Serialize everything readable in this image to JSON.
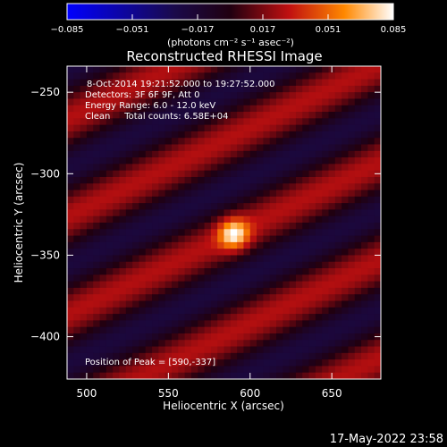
{
  "chart_data": {
    "type": "heatmap",
    "title": "Reconstructed RHESSI Image",
    "xlabel": "Heliocentric X (arcsec)",
    "ylabel": "Heliocentric Y (arcsec)",
    "xlim": [
      488,
      680
    ],
    "ylim": [
      -426,
      -234
    ],
    "x_ticks": [
      500,
      550,
      600,
      650
    ],
    "y_ticks": [
      -250,
      -300,
      -350,
      -400
    ],
    "colorbar": {
      "min": -0.085,
      "max": 0.085,
      "ticks": [
        -0.085,
        -0.051,
        -0.017,
        0.017,
        0.051,
        0.085
      ],
      "tick_labels": [
        "−0.085",
        "−0.051",
        "−0.017",
        "0.017",
        "0.051",
        "0.085"
      ],
      "unit_label": "(photons cm⁻² s⁻¹ asec⁻²)",
      "colormap": "hot"
    },
    "annotations": [
      "8-Oct-2014 19:21:52.000 to 19:27:52.000",
      "Detectors: 3F 6F 9F, Att 0",
      "Energy Range: 6.0 - 12.0 keV",
      "Clean     Total counts: 6.58E+04"
    ],
    "peak_label": "Position of Peak = [590,-337]",
    "peak": {
      "x": 590,
      "y": -337,
      "value": 0.085
    },
    "fringe_angle_deg": 26,
    "fringe_spacing_arcsec": 54,
    "fringe_amplitude": 0.025,
    "background": 0.003
  },
  "footer": {
    "timestamp": "17-May-2022 23:58"
  }
}
